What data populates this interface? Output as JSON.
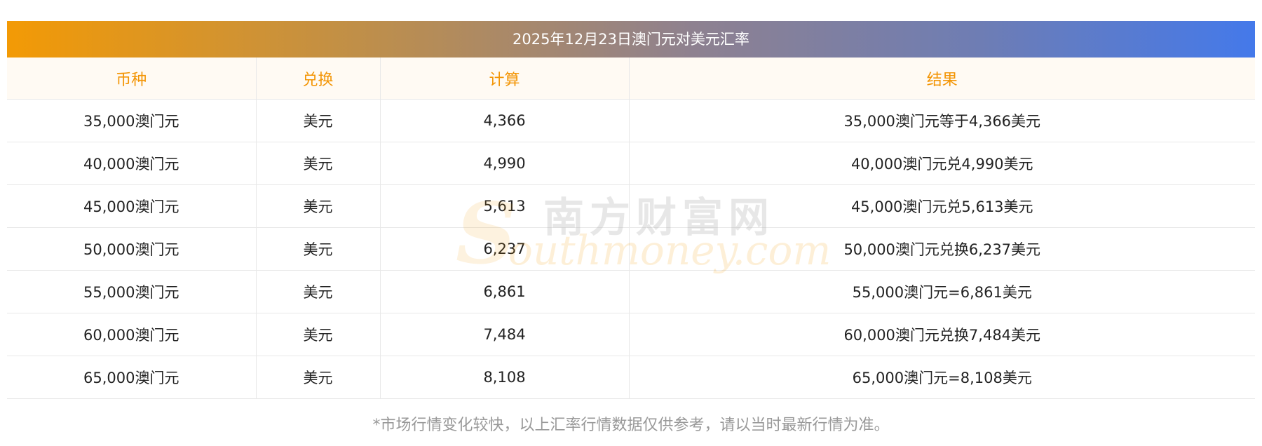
{
  "title": "2025年12月23日澳门元对美元汇率",
  "headers": [
    "币种",
    "兑换",
    "计算",
    "结果"
  ],
  "rows": [
    {
      "currency": "35,000澳门元",
      "target": "美元",
      "calc": "4,366",
      "result": "35,000澳门元等于4,366美元"
    },
    {
      "currency": "40,000澳门元",
      "target": "美元",
      "calc": "4,990",
      "result": "40,000澳门元兑4,990美元"
    },
    {
      "currency": "45,000澳门元",
      "target": "美元",
      "calc": "5,613",
      "result": "45,000澳门元兑5,613美元"
    },
    {
      "currency": "50,000澳门元",
      "target": "美元",
      "calc": "6,237",
      "result": "50,000澳门元兑换6,237美元"
    },
    {
      "currency": "55,000澳门元",
      "target": "美元",
      "calc": "6,861",
      "result": "55,000澳门元=6,861美元"
    },
    {
      "currency": "60,000澳门元",
      "target": "美元",
      "calc": "7,484",
      "result": "60,000澳门元兑换7,484美元"
    },
    {
      "currency": "65,000澳门元",
      "target": "美元",
      "calc": "8,108",
      "result": "65,000澳门元=8,108美元"
    }
  ],
  "watermark": {
    "cn": "南方财富网",
    "s": "S",
    "en": "outhmoney.com"
  },
  "note": "*市场行情变化较快，以上汇率行情数据仅供参考，请以当时最新行情为准。",
  "colors": {
    "header_text": "#f39505",
    "gradient_start": "#f39a05",
    "gradient_end": "#4479ea"
  }
}
